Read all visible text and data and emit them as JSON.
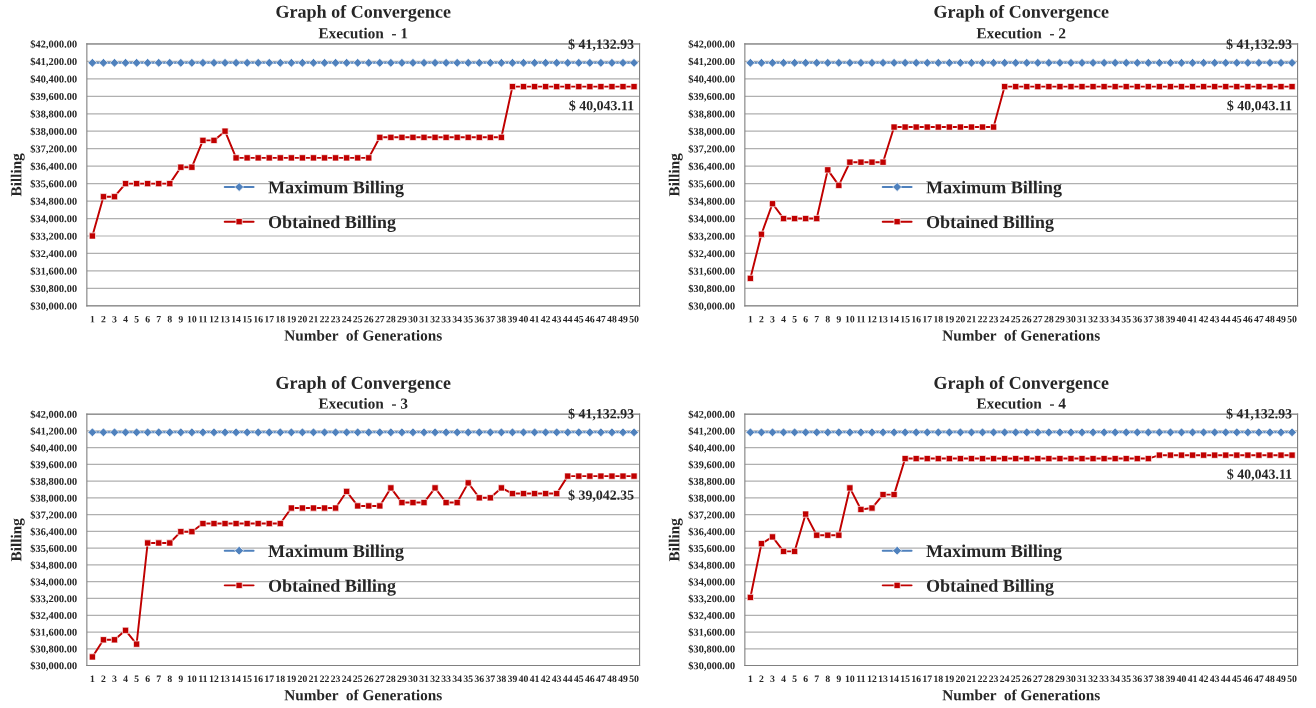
{
  "chart_data": [
    {
      "type": "line",
      "title": "Graph of Convergence",
      "subtitle": "Execution  - 1",
      "xlabel": "Number  of Generations",
      "ylabel": "Billing",
      "categories": [
        "1",
        "2",
        "3",
        "4",
        "5",
        "6",
        "7",
        "8",
        "9",
        "10",
        "11",
        "12",
        "13",
        "14",
        "15",
        "16",
        "17",
        "18",
        "19",
        "20",
        "21",
        "22",
        "23",
        "24",
        "25",
        "26",
        "27",
        "28",
        "29",
        "30",
        "31",
        "32",
        "33",
        "34",
        "35",
        "36",
        "37",
        "38",
        "39",
        "40",
        "41",
        "42",
        "43",
        "44",
        "45",
        "46",
        "47",
        "48",
        "49",
        "50"
      ],
      "series": [
        {
          "name": "Maximum Billing",
          "color": "#4f81bd",
          "marker": "diamond",
          "values": [
            41132.93,
            41132.93,
            41132.93,
            41132.93,
            41132.93,
            41132.93,
            41132.93,
            41132.93,
            41132.93,
            41132.93,
            41132.93,
            41132.93,
            41132.93,
            41132.93,
            41132.93,
            41132.93,
            41132.93,
            41132.93,
            41132.93,
            41132.93,
            41132.93,
            41132.93,
            41132.93,
            41132.93,
            41132.93,
            41132.93,
            41132.93,
            41132.93,
            41132.93,
            41132.93,
            41132.93,
            41132.93,
            41132.93,
            41132.93,
            41132.93,
            41132.93,
            41132.93,
            41132.93,
            41132.93,
            41132.93,
            41132.93,
            41132.93,
            41132.93,
            41132.93,
            41132.93,
            41132.93,
            41132.93,
            41132.93,
            41132.93,
            41132.93
          ]
        },
        {
          "name": "Obtained Billing",
          "color": "#c00000",
          "marker": "square",
          "values": [
            33200,
            35000,
            35000,
            35600,
            35600,
            35600,
            35600,
            35600,
            36350,
            36350,
            37580,
            37580,
            38000,
            36780,
            36780,
            36780,
            36780,
            36780,
            36780,
            36780,
            36780,
            36780,
            36780,
            36780,
            36780,
            36780,
            37720,
            37720,
            37720,
            37720,
            37720,
            37720,
            37720,
            37720,
            37720,
            37720,
            37720,
            37720,
            40043.11,
            40043.11,
            40043.11,
            40043.11,
            40043.11,
            40043.11,
            40043.11,
            40043.11,
            40043.11,
            40043.11,
            40043.11,
            40043.11
          ]
        }
      ],
      "ylim": [
        30000,
        42000
      ],
      "yticks": [
        {
          "value": 30000,
          "label": "$30,000.00"
        },
        {
          "value": 30800,
          "label": "$30,800.00"
        },
        {
          "value": 31600,
          "label": "$31,600.00"
        },
        {
          "value": 32400,
          "label": "$32,400.00"
        },
        {
          "value": 33200,
          "label": "$33,200.00"
        },
        {
          "value": 34000,
          "label": "$34,000.00"
        },
        {
          "value": 34800,
          "label": "$34,800.00"
        },
        {
          "value": 35600,
          "label": "$35,600.00"
        },
        {
          "value": 36400,
          "label": "$36,400.00"
        },
        {
          "value": 37200,
          "label": "$37,200.00"
        },
        {
          "value": 38000,
          "label": "$38,000.00"
        },
        {
          "value": 38800,
          "label": "$38,800.00"
        },
        {
          "value": 39600,
          "label": "$39,600.00"
        },
        {
          "value": 40400,
          "label": "$40,400.00"
        },
        {
          "value": 41200,
          "label": "$41,200.00"
        },
        {
          "value": 42000,
          "label": "$42,000.00"
        }
      ],
      "grid": "y",
      "legend": "center left",
      "annotations": [
        {
          "text": "$ 41,132.93",
          "x": "50",
          "y": 41132.93
        },
        {
          "text": "$ 40,043.11",
          "x": "50",
          "y": 40043.11
        }
      ]
    },
    {
      "type": "line",
      "title": "Graph of Convergence",
      "subtitle": "Execution  - 2",
      "xlabel": "Number  of Generations",
      "ylabel": "Billing",
      "categories": [
        "1",
        "2",
        "3",
        "4",
        "5",
        "6",
        "7",
        "8",
        "9",
        "10",
        "11",
        "12",
        "13",
        "14",
        "15",
        "16",
        "17",
        "18",
        "19",
        "20",
        "21",
        "22",
        "23",
        "24",
        "25",
        "26",
        "27",
        "28",
        "29",
        "30",
        "31",
        "32",
        "33",
        "34",
        "35",
        "36",
        "37",
        "38",
        "39",
        "40",
        "41",
        "42",
        "43",
        "44",
        "45",
        "46",
        "47",
        "48",
        "49",
        "50"
      ],
      "series": [
        {
          "name": "Maximum Billing",
          "color": "#4f81bd",
          "marker": "diamond",
          "values": [
            41132.93,
            41132.93,
            41132.93,
            41132.93,
            41132.93,
            41132.93,
            41132.93,
            41132.93,
            41132.93,
            41132.93,
            41132.93,
            41132.93,
            41132.93,
            41132.93,
            41132.93,
            41132.93,
            41132.93,
            41132.93,
            41132.93,
            41132.93,
            41132.93,
            41132.93,
            41132.93,
            41132.93,
            41132.93,
            41132.93,
            41132.93,
            41132.93,
            41132.93,
            41132.93,
            41132.93,
            41132.93,
            41132.93,
            41132.93,
            41132.93,
            41132.93,
            41132.93,
            41132.93,
            41132.93,
            41132.93,
            41132.93,
            41132.93,
            41132.93,
            41132.93,
            41132.93,
            41132.93,
            41132.93,
            41132.93,
            41132.93,
            41132.93
          ]
        },
        {
          "name": "Obtained Billing",
          "color": "#c00000",
          "marker": "square",
          "values": [
            31260,
            33280,
            34680,
            34000,
            34000,
            34000,
            34000,
            36230,
            35520,
            36580,
            36580,
            36580,
            36580,
            38190,
            38190,
            38190,
            38190,
            38190,
            38190,
            38190,
            38190,
            38190,
            38190,
            40043.11,
            40043.11,
            40043.11,
            40043.11,
            40043.11,
            40043.11,
            40043.11,
            40043.11,
            40043.11,
            40043.11,
            40043.11,
            40043.11,
            40043.11,
            40043.11,
            40043.11,
            40043.11,
            40043.11,
            40043.11,
            40043.11,
            40043.11,
            40043.11,
            40043.11,
            40043.11,
            40043.11,
            40043.11,
            40043.11,
            40043.11
          ]
        }
      ],
      "ylim": [
        30000,
        42000
      ],
      "yticks": [
        {
          "value": 30000,
          "label": "$30,000.00"
        },
        {
          "value": 30800,
          "label": "$30,800.00"
        },
        {
          "value": 31600,
          "label": "$31,600.00"
        },
        {
          "value": 32400,
          "label": "$32,400.00"
        },
        {
          "value": 33200,
          "label": "$33,200.00"
        },
        {
          "value": 34000,
          "label": "$34,000.00"
        },
        {
          "value": 34800,
          "label": "$34,800.00"
        },
        {
          "value": 35600,
          "label": "$35,600.00"
        },
        {
          "value": 36400,
          "label": "$36,400.00"
        },
        {
          "value": 37200,
          "label": "$37,200.00"
        },
        {
          "value": 38000,
          "label": "$38,000.00"
        },
        {
          "value": 38800,
          "label": "$38,800.00"
        },
        {
          "value": 39600,
          "label": "$39,600.00"
        },
        {
          "value": 40400,
          "label": "$40,400.00"
        },
        {
          "value": 41200,
          "label": "$41,200.00"
        },
        {
          "value": 42000,
          "label": "$42,000.00"
        }
      ],
      "grid": "y",
      "legend": "center left",
      "annotations": [
        {
          "text": "$ 41,132.93",
          "x": "50",
          "y": 41132.93
        },
        {
          "text": "$ 40,043.11",
          "x": "50",
          "y": 40043.11
        }
      ]
    },
    {
      "type": "line",
      "title": "Graph of Convergence",
      "subtitle": "Execution  - 3",
      "xlabel": "Number  of Generations",
      "ylabel": "Billing",
      "categories": [
        "1",
        "2",
        "3",
        "4",
        "5",
        "6",
        "7",
        "8",
        "9",
        "10",
        "11",
        "12",
        "13",
        "14",
        "15",
        "16",
        "17",
        "18",
        "19",
        "20",
        "21",
        "22",
        "23",
        "24",
        "25",
        "26",
        "27",
        "28",
        "29",
        "30",
        "31",
        "32",
        "33",
        "34",
        "35",
        "36",
        "37",
        "38",
        "39",
        "40",
        "41",
        "42",
        "43",
        "44",
        "45",
        "46",
        "47",
        "48",
        "49",
        "50"
      ],
      "series": [
        {
          "name": "Maximum Billing",
          "color": "#4f81bd",
          "marker": "diamond",
          "values": [
            41132.93,
            41132.93,
            41132.93,
            41132.93,
            41132.93,
            41132.93,
            41132.93,
            41132.93,
            41132.93,
            41132.93,
            41132.93,
            41132.93,
            41132.93,
            41132.93,
            41132.93,
            41132.93,
            41132.93,
            41132.93,
            41132.93,
            41132.93,
            41132.93,
            41132.93,
            41132.93,
            41132.93,
            41132.93,
            41132.93,
            41132.93,
            41132.93,
            41132.93,
            41132.93,
            41132.93,
            41132.93,
            41132.93,
            41132.93,
            41132.93,
            41132.93,
            41132.93,
            41132.93,
            41132.93,
            41132.93,
            41132.93,
            41132.93,
            41132.93,
            41132.93,
            41132.93,
            41132.93,
            41132.93,
            41132.93,
            41132.93,
            41132.93
          ]
        },
        {
          "name": "Obtained Billing",
          "color": "#c00000",
          "marker": "square",
          "values": [
            30410,
            31230,
            31230,
            31680,
            31020,
            35850,
            35850,
            35850,
            36390,
            36390,
            36780,
            36780,
            36780,
            36780,
            36780,
            36780,
            36780,
            36780,
            37520,
            37520,
            37520,
            37520,
            37520,
            38310,
            37620,
            37620,
            37620,
            38480,
            37780,
            37780,
            37780,
            38480,
            37780,
            37780,
            38720,
            38010,
            38010,
            38480,
            38210,
            38210,
            38210,
            38210,
            38210,
            39042.35,
            39042.35,
            39042.35,
            39042.35,
            39042.35,
            39042.35,
            39042.35
          ]
        }
      ],
      "ylim": [
        30000,
        42000
      ],
      "yticks": [
        {
          "value": 30000,
          "label": "$30,000.00"
        },
        {
          "value": 30800,
          "label": "$30,800.00"
        },
        {
          "value": 31600,
          "label": "$31,600.00"
        },
        {
          "value": 32400,
          "label": "$32,400.00"
        },
        {
          "value": 33200,
          "label": "$33,200.00"
        },
        {
          "value": 34000,
          "label": "$34,000.00"
        },
        {
          "value": 34800,
          "label": "$34,800.00"
        },
        {
          "value": 35600,
          "label": "$35,600.00"
        },
        {
          "value": 36400,
          "label": "$36,400.00"
        },
        {
          "value": 37200,
          "label": "$37,200.00"
        },
        {
          "value": 38000,
          "label": "$38,000.00"
        },
        {
          "value": 38800,
          "label": "$38,800.00"
        },
        {
          "value": 39600,
          "label": "$39,600.00"
        },
        {
          "value": 40400,
          "label": "$40,400.00"
        },
        {
          "value": 41200,
          "label": "$41,200.00"
        },
        {
          "value": 42000,
          "label": "$42,000.00"
        }
      ],
      "grid": "y",
      "legend": "center left",
      "annotations": [
        {
          "text": "$ 41,132.93",
          "x": "50",
          "y": 41132.93
        },
        {
          "text": "$ 39,042.35",
          "x": "50",
          "y": 39042.35
        }
      ]
    },
    {
      "type": "line",
      "title": "Graph of Convergence",
      "subtitle": "Execution  - 4",
      "xlabel": "Number  of Generations",
      "ylabel": "Billing",
      "categories": [
        "1",
        "2",
        "3",
        "4",
        "5",
        "6",
        "7",
        "8",
        "9",
        "10",
        "11",
        "12",
        "13",
        "14",
        "15",
        "16",
        "17",
        "18",
        "19",
        "20",
        "21",
        "22",
        "23",
        "24",
        "25",
        "26",
        "27",
        "28",
        "29",
        "30",
        "31",
        "32",
        "33",
        "34",
        "35",
        "36",
        "37",
        "38",
        "39",
        "40",
        "41",
        "42",
        "43",
        "44",
        "45",
        "46",
        "47",
        "48",
        "49",
        "50"
      ],
      "series": [
        {
          "name": "Maximum Billing",
          "color": "#4f81bd",
          "marker": "diamond",
          "values": [
            41132.93,
            41132.93,
            41132.93,
            41132.93,
            41132.93,
            41132.93,
            41132.93,
            41132.93,
            41132.93,
            41132.93,
            41132.93,
            41132.93,
            41132.93,
            41132.93,
            41132.93,
            41132.93,
            41132.93,
            41132.93,
            41132.93,
            41132.93,
            41132.93,
            41132.93,
            41132.93,
            41132.93,
            41132.93,
            41132.93,
            41132.93,
            41132.93,
            41132.93,
            41132.93,
            41132.93,
            41132.93,
            41132.93,
            41132.93,
            41132.93,
            41132.93,
            41132.93,
            41132.93,
            41132.93,
            41132.93,
            41132.93,
            41132.93,
            41132.93,
            41132.93,
            41132.93,
            41132.93,
            41132.93,
            41132.93,
            41132.93,
            41132.93
          ]
        },
        {
          "name": "Obtained Billing",
          "color": "#c00000",
          "marker": "square",
          "values": [
            33250,
            35820,
            36140,
            35450,
            35450,
            37230,
            36220,
            36220,
            36220,
            38480,
            37450,
            37520,
            38160,
            38160,
            39880,
            39880,
            39880,
            39880,
            39880,
            39880,
            39880,
            39880,
            39880,
            39880,
            39880,
            39880,
            39880,
            39880,
            39880,
            39880,
            39880,
            39880,
            39880,
            39880,
            39880,
            39880,
            39880,
            40043.11,
            40043.11,
            40043.11,
            40043.11,
            40043.11,
            40043.11,
            40043.11,
            40043.11,
            40043.11,
            40043.11,
            40043.11,
            40043.11,
            40043.11
          ]
        }
      ],
      "ylim": [
        30000,
        42000
      ],
      "yticks": [
        {
          "value": 30000,
          "label": "$30,000.00"
        },
        {
          "value": 30800,
          "label": "$30,800.00"
        },
        {
          "value": 31600,
          "label": "$31,600.00"
        },
        {
          "value": 32400,
          "label": "$32,400.00"
        },
        {
          "value": 33200,
          "label": "$33,200.00"
        },
        {
          "value": 34000,
          "label": "$34,000.00"
        },
        {
          "value": 34800,
          "label": "$34,800.00"
        },
        {
          "value": 35600,
          "label": "$35,600.00"
        },
        {
          "value": 36400,
          "label": "$36,400.00"
        },
        {
          "value": 37200,
          "label": "$37,200.00"
        },
        {
          "value": 38000,
          "label": "$38,000.00"
        },
        {
          "value": 38800,
          "label": "$38,800.00"
        },
        {
          "value": 39600,
          "label": "$39,600.00"
        },
        {
          "value": 40400,
          "label": "$40,400.00"
        },
        {
          "value": 41200,
          "label": "$41,200.00"
        },
        {
          "value": 42000,
          "label": "$42,000.00"
        }
      ],
      "grid": "y",
      "legend": "center left",
      "annotations": [
        {
          "text": "$ 41,132.93",
          "x": "50",
          "y": 41132.93
        },
        {
          "text": "$ 40,043.11",
          "x": "50",
          "y": 40043.11
        }
      ]
    }
  ]
}
